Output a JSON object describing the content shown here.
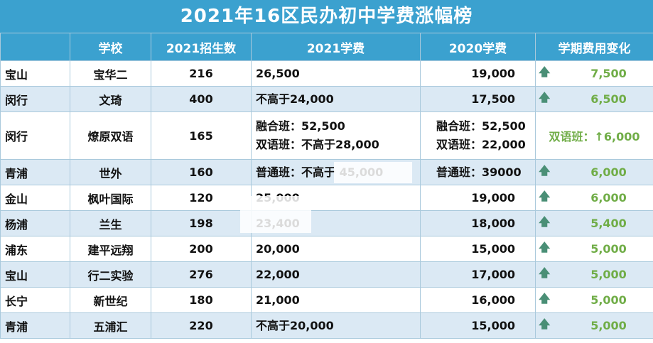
{
  "title": "2021年16区民办初中学费涨幅榜",
  "headers": [
    "",
    "学校",
    "2021招生数",
    "2021学费",
    "2020学费",
    "学期费用变化"
  ],
  "rows": [
    {
      "district": "宝山",
      "school": "宝华二",
      "enroll": "216",
      "fee2021": [
        "26,500"
      ],
      "fee2020": [
        "19,000"
      ],
      "change": "7,500",
      "arrow": true
    },
    {
      "district": "闵行",
      "school": "文琦",
      "enroll": "400",
      "fee2021": [
        "不高于24,000"
      ],
      "fee2020": [
        "17,500"
      ],
      "change": "6,500",
      "arrow": true
    },
    {
      "district": "闵行",
      "school": "燎原双语",
      "enroll": "165",
      "fee2021": [
        "融合班：52,500",
        "双语班：不高于28,000"
      ],
      "fee2020": [
        "融合班：52,500",
        "双语班：22,000"
      ],
      "change": "双语班：↑6,000",
      "arrow": false
    },
    {
      "district": "青浦",
      "school": "世外",
      "enroll": "160",
      "fee2021": [
        "普通班：不高于 45,000"
      ],
      "fee2020": [
        "普通班：39000"
      ],
      "change": "6,000",
      "arrow": true
    },
    {
      "district": "金山",
      "school": "枫叶国际",
      "enroll": "120",
      "fee2021": [
        "25,000"
      ],
      "fee2020": [
        "19,000"
      ],
      "change": "6,000",
      "arrow": true
    },
    {
      "district": "杨浦",
      "school": "兰生",
      "enroll": "198",
      "fee2021": [
        "23,400"
      ],
      "fee2020": [
        "18,000"
      ],
      "change": "5,400",
      "arrow": true
    },
    {
      "district": "浦东",
      "school": "建平远翔",
      "enroll": "200",
      "fee2021": [
        "20,000"
      ],
      "fee2020": [
        "15,000"
      ],
      "change": "5,000",
      "arrow": true
    },
    {
      "district": "宝山",
      "school": "行二实验",
      "enroll": "276",
      "fee2021": [
        "22,000"
      ],
      "fee2020": [
        "17,000"
      ],
      "change": "5,000",
      "arrow": true
    },
    {
      "district": "长宁",
      "school": "新世纪",
      "enroll": "180",
      "fee2021": [
        "21,000"
      ],
      "fee2020": [
        "16,000"
      ],
      "change": "5,000",
      "arrow": true
    },
    {
      "district": "青浦",
      "school": "五浦汇",
      "enroll": "220",
      "fee2021": [
        "不高于20,000"
      ],
      "fee2020": [
        "15,000"
      ],
      "change": "5,000",
      "arrow": true
    }
  ],
  "colors": {
    "header_bg": "#3ba1cf",
    "row_alt": "#dbe9f4",
    "change_text": "#70ad47",
    "arrow": "#4a8f76"
  },
  "icons": {
    "up_arrow": "up-arrow-icon"
  }
}
